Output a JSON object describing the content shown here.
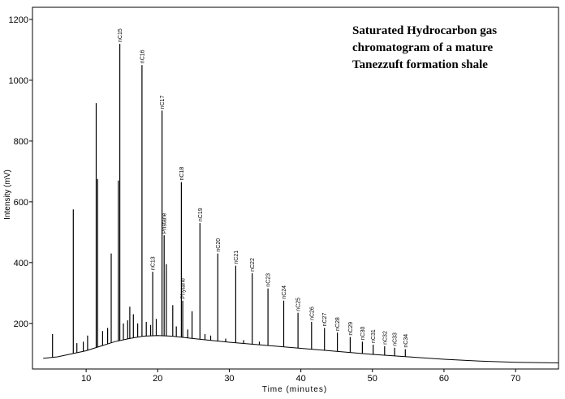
{
  "chart_data": {
    "type": "line",
    "title_lines": [
      "Saturated Hydrocarbon gas",
      "chromatogram of a mature",
      "Tanezzuft formation shale"
    ],
    "xlabel": "Time (minutes)",
    "ylabel": "Intensity (mV)",
    "xlim": [
      2.5,
      76
    ],
    "ylim": [
      50,
      1240
    ],
    "x_ticks": [
      10,
      20,
      30,
      40,
      50,
      60,
      70
    ],
    "y_ticks": [
      200,
      400,
      600,
      800,
      1000,
      1200
    ],
    "grid": false,
    "labeled_peaks": [
      {
        "label": "nC15",
        "x": 14.7,
        "y": 1120
      },
      {
        "label": "nC16",
        "x": 17.8,
        "y": 1050
      },
      {
        "label": "nC13",
        "x": 19.3,
        "y": 370
      },
      {
        "label": "nC17",
        "x": 20.6,
        "y": 900
      },
      {
        "label": "Pristane",
        "x": 20.9,
        "y": 490
      },
      {
        "label": "nC18",
        "x": 23.3,
        "y": 665
      },
      {
        "label": "Phytane",
        "x": 23.5,
        "y": 275
      },
      {
        "label": "nC19",
        "x": 25.9,
        "y": 530
      },
      {
        "label": "nC20",
        "x": 28.4,
        "y": 430
      },
      {
        "label": "nC21",
        "x": 30.9,
        "y": 390
      },
      {
        "label": "nC22",
        "x": 33.2,
        "y": 365
      },
      {
        "label": "nC23",
        "x": 35.4,
        "y": 315
      },
      {
        "label": "nC24",
        "x": 37.6,
        "y": 275
      },
      {
        "label": "nC25",
        "x": 39.6,
        "y": 235
      },
      {
        "label": "nC26",
        "x": 41.5,
        "y": 205
      },
      {
        "label": "nC27",
        "x": 43.3,
        "y": 185
      },
      {
        "label": "nC28",
        "x": 45.1,
        "y": 170
      },
      {
        "label": "nC29",
        "x": 46.9,
        "y": 155
      },
      {
        "label": "nC30",
        "x": 48.6,
        "y": 140
      },
      {
        "label": "nC31",
        "x": 50.1,
        "y": 130
      },
      {
        "label": "nC32",
        "x": 51.7,
        "y": 125
      },
      {
        "label": "nC33",
        "x": 53.1,
        "y": 120
      },
      {
        "label": "nC34",
        "x": 54.6,
        "y": 115
      }
    ],
    "unlabeled_peaks": [
      {
        "x": 5.3,
        "y": 165
      },
      {
        "x": 8.2,
        "y": 575
      },
      {
        "x": 11.4,
        "y": 925
      },
      {
        "x": 11.6,
        "y": 675
      },
      {
        "x": 13.5,
        "y": 430
      },
      {
        "x": 14.5,
        "y": 670
      },
      {
        "x": 16.1,
        "y": 255
      },
      {
        "x": 21.2,
        "y": 395
      },
      {
        "x": 22.1,
        "y": 260
      },
      {
        "x": 24.8,
        "y": 240
      },
      {
        "x": 8.7,
        "y": 135
      },
      {
        "x": 9.6,
        "y": 140
      },
      {
        "x": 10.2,
        "y": 160
      },
      {
        "x": 12.3,
        "y": 175
      },
      {
        "x": 13.0,
        "y": 185
      },
      {
        "x": 15.2,
        "y": 200
      },
      {
        "x": 15.8,
        "y": 210
      },
      {
        "x": 16.6,
        "y": 230
      },
      {
        "x": 17.2,
        "y": 200
      },
      {
        "x": 18.4,
        "y": 205
      },
      {
        "x": 19.0,
        "y": 195
      },
      {
        "x": 19.8,
        "y": 215
      },
      {
        "x": 22.6,
        "y": 190
      },
      {
        "x": 24.2,
        "y": 180
      },
      {
        "x": 26.6,
        "y": 165
      },
      {
        "x": 27.4,
        "y": 160
      },
      {
        "x": 29.5,
        "y": 150
      },
      {
        "x": 32.0,
        "y": 145
      },
      {
        "x": 34.2,
        "y": 140
      }
    ],
    "baseline": [
      [
        4,
        85
      ],
      [
        6,
        90
      ],
      [
        8,
        100
      ],
      [
        10,
        110
      ],
      [
        12,
        125
      ],
      [
        14,
        140
      ],
      [
        16,
        150
      ],
      [
        18,
        158
      ],
      [
        20,
        160
      ],
      [
        22,
        158
      ],
      [
        25,
        150
      ],
      [
        30,
        138
      ],
      [
        35,
        128
      ],
      [
        40,
        118
      ],
      [
        45,
        108
      ],
      [
        50,
        98
      ],
      [
        55,
        90
      ],
      [
        60,
        82
      ],
      [
        65,
        76
      ],
      [
        70,
        72
      ],
      [
        76,
        70
      ]
    ]
  }
}
